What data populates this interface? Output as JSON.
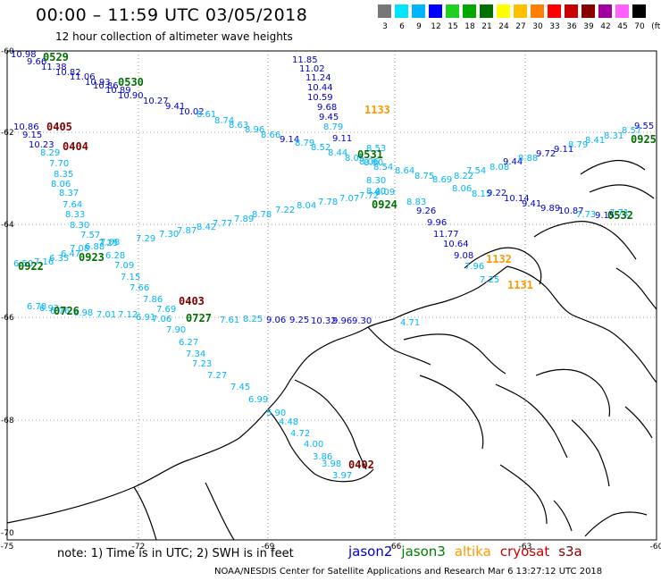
{
  "header": {
    "title": "00:00 – 11:59 UTC 03/05/2018",
    "subtitle": "12 hour collection of altimeter wave heights"
  },
  "colorbar": {
    "unit": "(ft)",
    "bins": [
      {
        "color": "#777777",
        "label": "3"
      },
      {
        "color": "#00e5ff",
        "label": "6"
      },
      {
        "color": "#00b4ff",
        "label": "9"
      },
      {
        "color": "#0000ff",
        "label": "12"
      },
      {
        "color": "#20d020",
        "label": "15"
      },
      {
        "color": "#00a800",
        "label": "18"
      },
      {
        "color": "#007000",
        "label": "21"
      },
      {
        "color": "#ffff00",
        "label": "24"
      },
      {
        "color": "#ffc000",
        "label": "27"
      },
      {
        "color": "#ff8000",
        "label": "30"
      },
      {
        "color": "#ff0000",
        "label": "33"
      },
      {
        "color": "#c80000",
        "label": "36"
      },
      {
        "color": "#880000",
        "label": "39"
      },
      {
        "color": "#a000a0",
        "label": "42"
      },
      {
        "color": "#ff60ff",
        "label": "45"
      },
      {
        "color": "#000000",
        "label": "70"
      }
    ]
  },
  "axes": {
    "lon_ticks": [
      "-75",
      "-72",
      "-69",
      "-66",
      "-63",
      "-60"
    ],
    "lat_ticks": [
      "-60",
      "-62",
      "-64",
      "-66",
      "-68",
      "-70"
    ]
  },
  "notes": {
    "text": "note:  1) Time is in UTC;  2) SWH is in feet",
    "footer": "NOAA/NESDIS Center for Satellite Applications and Research    Mar  6 13:27:12 UTC 2018"
  },
  "satellites": [
    {
      "name": "jason2",
      "color": "#0000cc"
    },
    {
      "name": "jason3",
      "color": "#008000"
    },
    {
      "name": "altika",
      "color": "#ff9900"
    },
    {
      "name": "cryosat",
      "color": "#cc0000"
    },
    {
      "name": "s3a",
      "color": "#800000"
    }
  ],
  "passes": [
    {
      "label": "0529",
      "color": "#007000"
    },
    {
      "label": "0530",
      "color": "#007000"
    },
    {
      "label": "0405",
      "color": "#800000"
    },
    {
      "label": "0404",
      "color": "#800000"
    },
    {
      "label": "1133",
      "color": "#ff9900"
    },
    {
      "label": "0531",
      "color": "#007000"
    },
    {
      "label": "0925",
      "color": "#007000"
    },
    {
      "label": "0924",
      "color": "#007000"
    },
    {
      "label": "0922",
      "color": "#007000"
    },
    {
      "label": "0923",
      "color": "#007000"
    },
    {
      "label": "0532",
      "color": "#007000"
    },
    {
      "label": "1132",
      "color": "#ff9900"
    },
    {
      "label": "1131",
      "color": "#ff9900"
    },
    {
      "label": "0403",
      "color": "#800000"
    },
    {
      "label": "0726",
      "color": "#007000"
    },
    {
      "label": "0727",
      "color": "#007000"
    },
    {
      "label": "0402",
      "color": "#800000"
    }
  ],
  "observations": [
    {
      "v": "10.98",
      "c": "#0000cc"
    },
    {
      "v": "9.66",
      "c": "#0000cc"
    },
    {
      "v": "11.38",
      "c": "#0000cc"
    },
    {
      "v": "10.82",
      "c": "#0000cc"
    },
    {
      "v": "11.06",
      "c": "#0000cc"
    },
    {
      "v": "10.93",
      "c": "#0000cc"
    },
    {
      "v": "10.86",
      "c": "#0000cc"
    },
    {
      "v": "10.89",
      "c": "#0000cc"
    },
    {
      "v": "10.90",
      "c": "#0000cc"
    },
    {
      "v": "10.27",
      "c": "#0000cc"
    },
    {
      "v": "9.41",
      "c": "#0000cc"
    },
    {
      "v": "10.02",
      "c": "#0000cc"
    },
    {
      "v": "8.61",
      "c": "#00b4ff"
    },
    {
      "v": "8.74",
      "c": "#00b4ff"
    },
    {
      "v": "8.63",
      "c": "#00b4ff"
    },
    {
      "v": "8.96",
      "c": "#00b4ff"
    },
    {
      "v": "8.66",
      "c": "#00b4ff"
    },
    {
      "v": "9.14",
      "c": "#0000cc"
    },
    {
      "v": "8.79",
      "c": "#00b4ff"
    },
    {
      "v": "8.52",
      "c": "#00b4ff"
    },
    {
      "v": "8.44",
      "c": "#00b4ff"
    },
    {
      "v": "8.05",
      "c": "#00b4ff"
    },
    {
      "v": "8.06",
      "c": "#00b4ff"
    },
    {
      "v": "8.54",
      "c": "#00b4ff"
    },
    {
      "v": "8.64",
      "c": "#00b4ff"
    },
    {
      "v": "8.75",
      "c": "#00b4ff"
    },
    {
      "v": "8.69",
      "c": "#00b4ff"
    },
    {
      "v": "8.22",
      "c": "#00b4ff"
    },
    {
      "v": "7.54",
      "c": "#00b4ff"
    },
    {
      "v": "8.08",
      "c": "#00b4ff"
    },
    {
      "v": "9.44",
      "c": "#0000cc"
    },
    {
      "v": "8.88",
      "c": "#00b4ff"
    },
    {
      "v": "9.72",
      "c": "#0000cc"
    },
    {
      "v": "9.11",
      "c": "#0000cc"
    },
    {
      "v": "8.79",
      "c": "#00b4ff"
    },
    {
      "v": "8.41",
      "c": "#00b4ff"
    },
    {
      "v": "8.31",
      "c": "#00b4ff"
    },
    {
      "v": "8.57",
      "c": "#00b4ff"
    },
    {
      "v": "9.55",
      "c": "#0000cc"
    },
    {
      "v": "11.85",
      "c": "#0000cc"
    },
    {
      "v": "11.02",
      "c": "#0000cc"
    },
    {
      "v": "11.24",
      "c": "#0000cc"
    },
    {
      "v": "10.44",
      "c": "#0000cc"
    },
    {
      "v": "10.59",
      "c": "#0000cc"
    },
    {
      "v": "9.68",
      "c": "#0000cc"
    },
    {
      "v": "9.45",
      "c": "#0000cc"
    },
    {
      "v": "8.79",
      "c": "#00b4ff"
    },
    {
      "v": "9.11",
      "c": "#0000cc"
    },
    {
      "v": "8.53",
      "c": "#00b4ff"
    },
    {
      "v": "8.80",
      "c": "#00b4ff"
    },
    {
      "v": "8.30",
      "c": "#00b4ff"
    },
    {
      "v": "8.40",
      "c": "#00b4ff"
    },
    {
      "v": "8.06",
      "c": "#00b4ff"
    },
    {
      "v": "8.15",
      "c": "#00b4ff"
    },
    {
      "v": "9.22",
      "c": "#0000cc"
    },
    {
      "v": "10.14",
      "c": "#0000cc"
    },
    {
      "v": "9.41",
      "c": "#0000cc"
    },
    {
      "v": "9.89",
      "c": "#0000cc"
    },
    {
      "v": "10.87",
      "c": "#0000cc"
    },
    {
      "v": "7.73",
      "c": "#00b4ff"
    },
    {
      "v": "9.15",
      "c": "#0000cc"
    },
    {
      "v": "7.71",
      "c": "#00b4ff"
    },
    {
      "v": "10.86",
      "c": "#0000cc"
    },
    {
      "v": "9.15",
      "c": "#0000cc"
    },
    {
      "v": "10.23",
      "c": "#0000cc"
    },
    {
      "v": "8.29",
      "c": "#00b4ff"
    },
    {
      "v": "7.70",
      "c": "#00b4ff"
    },
    {
      "v": "8.35",
      "c": "#00b4ff"
    },
    {
      "v": "8.06",
      "c": "#00b4ff"
    },
    {
      "v": "8.37",
      "c": "#00b4ff"
    },
    {
      "v": "7.64",
      "c": "#00b4ff"
    },
    {
      "v": "8.33",
      "c": "#00b4ff"
    },
    {
      "v": "8.30",
      "c": "#00b4ff"
    },
    {
      "v": "7.57",
      "c": "#00b4ff"
    },
    {
      "v": "7.25",
      "c": "#00b4ff"
    },
    {
      "v": "6.28",
      "c": "#00b4ff"
    },
    {
      "v": "7.09",
      "c": "#00b4ff"
    },
    {
      "v": "7.15",
      "c": "#00b4ff"
    },
    {
      "v": "7.66",
      "c": "#00b4ff"
    },
    {
      "v": "7.86",
      "c": "#00b4ff"
    },
    {
      "v": "7.69",
      "c": "#00b4ff"
    },
    {
      "v": "7.90",
      "c": "#00b4ff"
    },
    {
      "v": "6.27",
      "c": "#00b4ff"
    },
    {
      "v": "7.34",
      "c": "#00b4ff"
    },
    {
      "v": "7.23",
      "c": "#00b4ff"
    },
    {
      "v": "7.27",
      "c": "#00b4ff"
    },
    {
      "v": "7.45",
      "c": "#00b4ff"
    },
    {
      "v": "6.99",
      "c": "#00b4ff"
    },
    {
      "v": "5.90",
      "c": "#00b4ff"
    },
    {
      "v": "4.48",
      "c": "#00b4ff"
    },
    {
      "v": "4.72",
      "c": "#00b4ff"
    },
    {
      "v": "4.00",
      "c": "#00b4ff"
    },
    {
      "v": "3.86",
      "c": "#00b4ff"
    },
    {
      "v": "3.98",
      "c": "#00b4ff"
    },
    {
      "v": "3.97",
      "c": "#00b4ff"
    },
    {
      "v": "6.50",
      "c": "#00b4ff"
    },
    {
      "v": "7.16",
      "c": "#00b4ff"
    },
    {
      "v": "6.35",
      "c": "#00b4ff"
    },
    {
      "v": "6.47",
      "c": "#00b4ff"
    },
    {
      "v": "7.08",
      "c": "#00b4ff"
    },
    {
      "v": "6.88",
      "c": "#00b4ff"
    },
    {
      "v": "7.08",
      "c": "#00b4ff"
    },
    {
      "v": "7.29",
      "c": "#00b4ff"
    },
    {
      "v": "7.30",
      "c": "#00b4ff"
    },
    {
      "v": "7.87",
      "c": "#00b4ff"
    },
    {
      "v": "8.42",
      "c": "#00b4ff"
    },
    {
      "v": "7.77",
      "c": "#00b4ff"
    },
    {
      "v": "7.89",
      "c": "#00b4ff"
    },
    {
      "v": "8.78",
      "c": "#00b4ff"
    },
    {
      "v": "7.22",
      "c": "#00b4ff"
    },
    {
      "v": "8.04",
      "c": "#00b4ff"
    },
    {
      "v": "7.78",
      "c": "#00b4ff"
    },
    {
      "v": "7.07",
      "c": "#00b4ff"
    },
    {
      "v": "7.72",
      "c": "#00b4ff"
    },
    {
      "v": "8.09",
      "c": "#00b4ff"
    },
    {
      "v": "8.83",
      "c": "#00b4ff"
    },
    {
      "v": "9.26",
      "c": "#0000cc"
    },
    {
      "v": "9.96",
      "c": "#0000cc"
    },
    {
      "v": "11.77",
      "c": "#0000cc"
    },
    {
      "v": "10.64",
      "c": "#0000cc"
    },
    {
      "v": "9.08",
      "c": "#0000cc"
    },
    {
      "v": "7.96",
      "c": "#00b4ff"
    },
    {
      "v": "7.25",
      "c": "#00b4ff"
    },
    {
      "v": "6.78",
      "c": "#00b4ff"
    },
    {
      "v": "6.93",
      "c": "#00b4ff"
    },
    {
      "v": "6.76",
      "c": "#00b4ff"
    },
    {
      "v": "6.98",
      "c": "#00b4ff"
    },
    {
      "v": "7.01",
      "c": "#00b4ff"
    },
    {
      "v": "7.12",
      "c": "#00b4ff"
    },
    {
      "v": "6.91",
      "c": "#00b4ff"
    },
    {
      "v": "7.06",
      "c": "#00b4ff"
    },
    {
      "v": "7.61",
      "c": "#00b4ff"
    },
    {
      "v": "8.25",
      "c": "#00b4ff"
    },
    {
      "v": "9.06",
      "c": "#0000cc"
    },
    {
      "v": "9.25",
      "c": "#0000cc"
    },
    {
      "v": "10.32",
      "c": "#0000cc"
    },
    {
      "v": "9.96",
      "c": "#0000cc"
    },
    {
      "v": "9.30",
      "c": "#0000cc"
    },
    {
      "v": "4.71",
      "c": "#00b4ff"
    }
  ]
}
